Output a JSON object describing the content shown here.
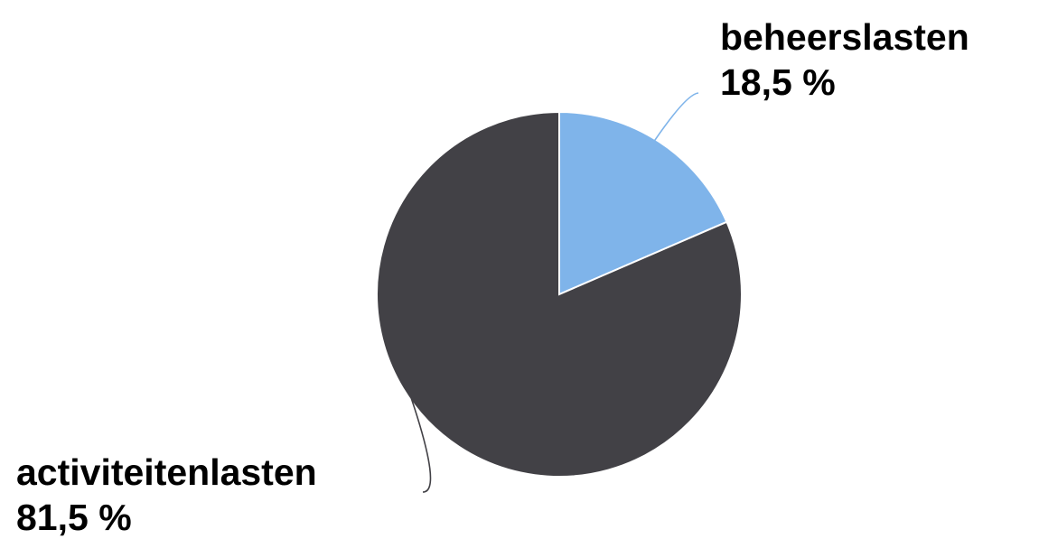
{
  "chart_data": {
    "type": "pie",
    "slices": [
      {
        "label": "beheerslasten",
        "value": 18.5,
        "value_label": "18,5 %",
        "color": "#7fb4ea"
      },
      {
        "label": "activiteitenlasten",
        "value": 81.5,
        "value_label": "81,5 %",
        "color": "#424146"
      }
    ],
    "start_angle": "12 o'clock",
    "direction": "clockwise",
    "legend": "none",
    "leader_line_colors": [
      "#7fb4ea",
      "#424146"
    ]
  }
}
